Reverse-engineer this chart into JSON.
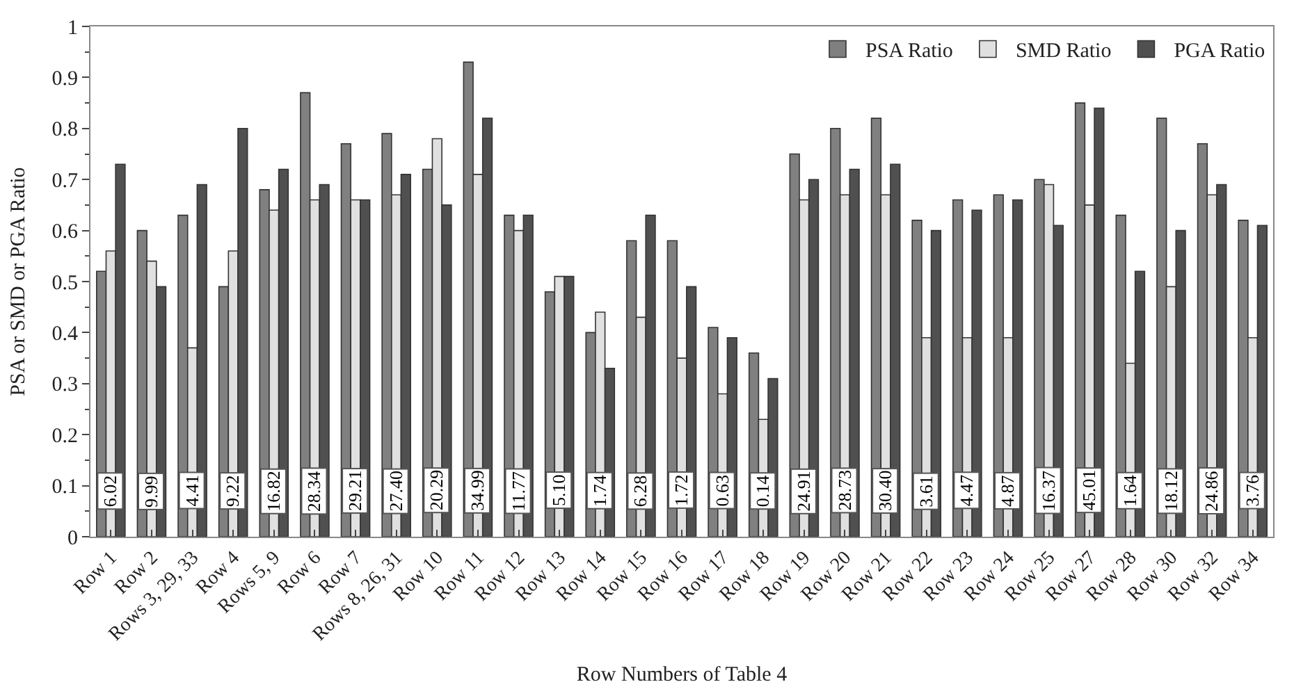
{
  "chart_data": {
    "type": "bar",
    "xlabel": "Row Numbers of Table 4",
    "ylabel": "PSA or SMD or PGA Ratio",
    "categories": [
      "Row 1",
      "Row 2",
      "Rows 3, 29, 33",
      "Row 4",
      "Rows 5, 9",
      "Row 6",
      "Row 7",
      "Rows 8, 26, 31",
      "Row 10",
      "Row 11",
      "Row 12",
      "Row 13",
      "Row 14",
      "Row 15",
      "Row 16",
      "Row 17",
      "Row 18",
      "Row 19",
      "Row 20",
      "Row 21",
      "Row 22",
      "Row 23",
      "Row 24",
      "Row 25",
      "Row 27",
      "Row 28",
      "Row 30",
      "Row 32",
      "Row 34"
    ],
    "series": [
      {
        "name": "PSA Ratio",
        "color": "#808080",
        "values": [
          0.52,
          0.6,
          0.63,
          0.49,
          0.68,
          0.87,
          0.77,
          0.79,
          0.72,
          0.93,
          0.63,
          0.48,
          0.4,
          0.58,
          0.58,
          0.41,
          0.36,
          0.75,
          0.8,
          0.82,
          0.62,
          0.66,
          0.67,
          0.7,
          0.85,
          0.63,
          0.82,
          0.77,
          0.62
        ]
      },
      {
        "name": "SMD Ratio",
        "color": "#e0e0e0",
        "values": [
          0.56,
          0.54,
          0.37,
          0.56,
          0.64,
          0.66,
          0.66,
          0.67,
          0.78,
          0.71,
          0.6,
          0.51,
          0.44,
          0.43,
          0.35,
          0.28,
          0.23,
          0.66,
          0.67,
          0.67,
          0.39,
          0.39,
          0.39,
          0.69,
          0.65,
          0.34,
          0.49,
          0.67,
          0.39
        ]
      },
      {
        "name": "PGA Ratio",
        "color": "#505050",
        "values": [
          0.73,
          0.49,
          0.69,
          0.8,
          0.72,
          0.69,
          0.66,
          0.71,
          0.65,
          0.82,
          0.63,
          0.51,
          0.33,
          0.63,
          0.49,
          0.39,
          0.31,
          0.7,
          0.72,
          0.73,
          0.6,
          0.64,
          0.66,
          0.61,
          0.84,
          0.52,
          0.6,
          0.69,
          0.61
        ]
      }
    ],
    "annotations": [
      {
        "text": "6.02",
        "x": "Row 1",
        "y": 0.09
      },
      {
        "text": "9.99",
        "x": "Row 2",
        "y": 0.09
      },
      {
        "text": "4.41",
        "x": "Rows 3, 29, 33",
        "y": 0.09
      },
      {
        "text": "9.22",
        "x": "Row 4",
        "y": 0.09
      },
      {
        "text": "16.82",
        "x": "Rows 5, 9",
        "y": 0.09
      },
      {
        "text": "28.34",
        "x": "Row 6",
        "y": 0.09
      },
      {
        "text": "29.21",
        "x": "Row 7",
        "y": 0.09
      },
      {
        "text": "27.40",
        "x": "Rows 8, 26, 31",
        "y": 0.09
      },
      {
        "text": "20.29",
        "x": "Row 10",
        "y": 0.09
      },
      {
        "text": "34.99",
        "x": "Row 11",
        "y": 0.09
      },
      {
        "text": "11.77",
        "x": "Row 12",
        "y": 0.09
      },
      {
        "text": "5.10",
        "x": "Row 13",
        "y": 0.09
      },
      {
        "text": "1.74",
        "x": "Row 14",
        "y": 0.09
      },
      {
        "text": "6.28",
        "x": "Row 15",
        "y": 0.09
      },
      {
        "text": "1.72",
        "x": "Row 16",
        "y": 0.09
      },
      {
        "text": "0.63",
        "x": "Row 17",
        "y": 0.09
      },
      {
        "text": "0.14",
        "x": "Row 18",
        "y": 0.09
      },
      {
        "text": "24.91",
        "x": "Row 19",
        "y": 0.09
      },
      {
        "text": "28.73",
        "x": "Row 20",
        "y": 0.09
      },
      {
        "text": "30.40",
        "x": "Row 21",
        "y": 0.09
      },
      {
        "text": "3.61",
        "x": "Row 22",
        "y": 0.09
      },
      {
        "text": "4.47",
        "x": "Row 23",
        "y": 0.09
      },
      {
        "text": "4.87",
        "x": "Row 24",
        "y": 0.09
      },
      {
        "text": "16.37",
        "x": "Row 25",
        "y": 0.09
      },
      {
        "text": "45.01",
        "x": "Row 27",
        "y": 0.09
      },
      {
        "text": "1.64",
        "x": "Row 28",
        "y": 0.09
      },
      {
        "text": "18.12",
        "x": "Row 30",
        "y": 0.09
      },
      {
        "text": "24.86",
        "x": "Row 32",
        "y": 0.09
      },
      {
        "text": "3.76",
        "x": "Row 34",
        "y": 0.09
      }
    ],
    "ylim": [
      0,
      1
    ],
    "yticks": [
      0,
      0.1,
      0.2,
      0.3,
      0.4,
      0.5,
      0.6,
      0.7,
      0.8,
      0.9,
      1
    ],
    "legend": "top right"
  }
}
